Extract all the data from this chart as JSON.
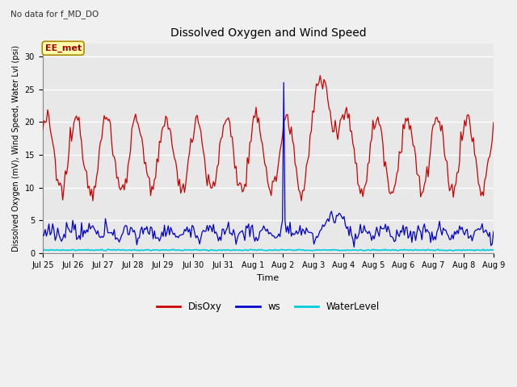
{
  "title": "Dissolved Oxygen and Wind Speed",
  "top_left_text": "No data for f_MD_DO",
  "ylabel": "Dissolved Oxygen (mV), Wind Speed, Water Lvl (psi)",
  "xlabel": "Time",
  "annotation_box": "EE_met",
  "ylim": [
    0,
    32
  ],
  "yticks": [
    0,
    5,
    10,
    15,
    20,
    25,
    30
  ],
  "fig_bg_color": "#f0f0f0",
  "plot_bg_color": "#e8e8e8",
  "disoxy_color": "#cc0000",
  "ws_color": "#0000cc",
  "wl_color": "#00ccdd",
  "legend_labels": [
    "DisOxy",
    "ws",
    "WaterLevel"
  ],
  "n_days": 15,
  "seed": 12345,
  "title_fontsize": 10,
  "axis_label_fontsize": 7,
  "tick_fontsize": 7
}
